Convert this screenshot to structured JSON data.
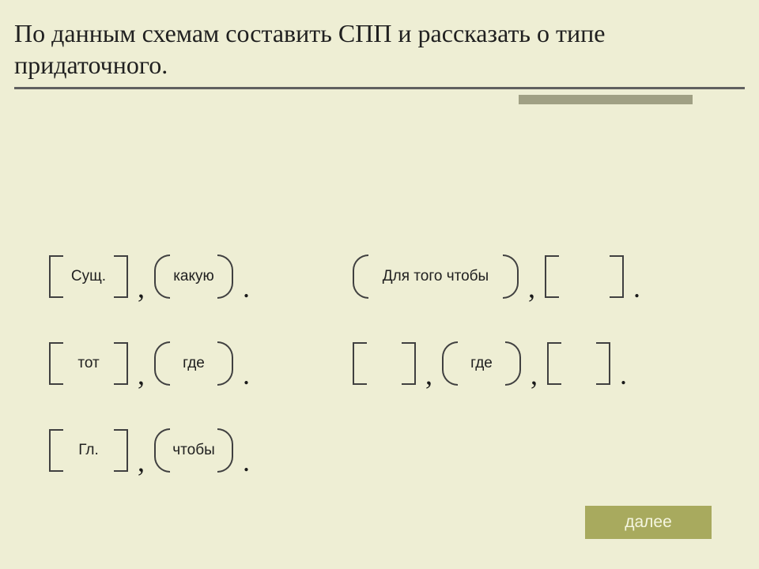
{
  "title": "По данным схемам составить СПП и рассказать о типе придаточного.",
  "colors": {
    "background": "#eeeed4",
    "underline_main": "#606060",
    "underline_accent": "#a0a084",
    "box_border": "#404040",
    "text": "#202020",
    "button_bg": "#a8aa5e",
    "button_text": "#f5f6e0"
  },
  "schemas_left": [
    {
      "main": "Сущ.",
      "sub": "какую",
      "p1": ",",
      "p2": "."
    },
    {
      "main": "тот",
      "sub": "где",
      "p1": ",",
      "p2": "."
    },
    {
      "main": "Гл.",
      "sub": "чтобы",
      "p1": ",",
      "p2": "."
    }
  ],
  "schemas_right": [
    {
      "type": "sub_first",
      "sub": "Для того чтобы",
      "p1": ",",
      "p2": ".",
      "main": ""
    },
    {
      "type": "embedded",
      "main_l": "",
      "p1": ",",
      "sub": "где",
      "p2": ",",
      "main_r": "",
      "p3": "."
    }
  ],
  "button_label": "далее"
}
